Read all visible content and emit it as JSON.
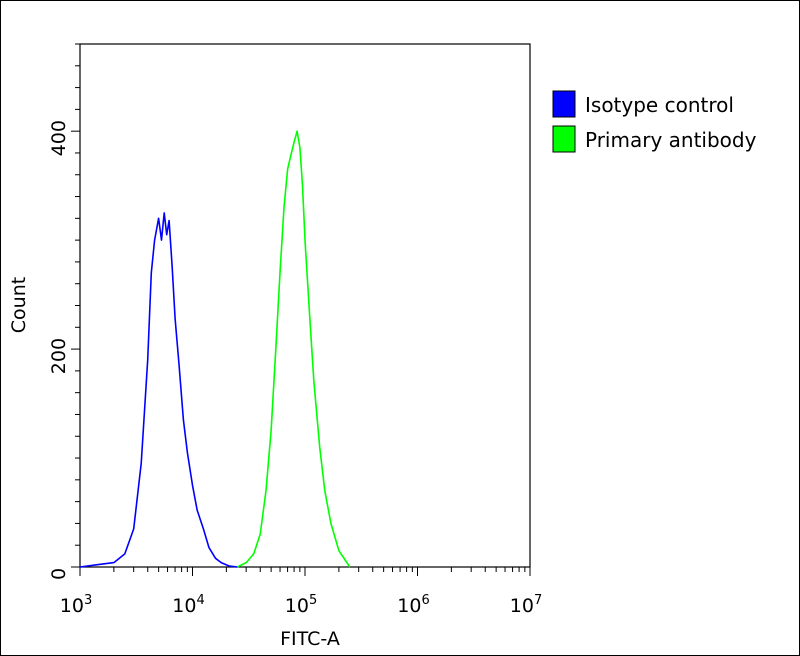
{
  "chart_data": {
    "type": "line",
    "title": "",
    "xlabel": "FITC-A",
    "ylabel": "Count",
    "x_scale": "log",
    "xlim": [
      1000,
      10000000
    ],
    "ylim": [
      0,
      480
    ],
    "x_ticks": [
      {
        "value": 1000,
        "base": "10",
        "exp": "3"
      },
      {
        "value": 10000,
        "base": "10",
        "exp": "4"
      },
      {
        "value": 100000,
        "base": "10",
        "exp": "5"
      },
      {
        "value": 1000000,
        "base": "10",
        "exp": "6"
      },
      {
        "value": 10000000,
        "base": "10",
        "exp": "7"
      }
    ],
    "y_ticks": [
      {
        "value": 0,
        "label": "0"
      },
      {
        "value": 200,
        "label": "200"
      },
      {
        "value": 400,
        "label": "400"
      }
    ],
    "grid": false,
    "legend_position": "right",
    "series": [
      {
        "name": "Isotype control",
        "color": "#0000ff",
        "x": [
          1000,
          1400,
          2000,
          2500,
          3000,
          3500,
          4000,
          4300,
          4600,
          5000,
          5300,
          5600,
          5900,
          6200,
          6600,
          7000,
          7600,
          8300,
          9000,
          10000,
          11000,
          12500,
          14000,
          16000,
          18000,
          21000,
          25000
        ],
        "y": [
          0,
          2,
          4,
          12,
          35,
          95,
          190,
          270,
          300,
          320,
          300,
          325,
          305,
          318,
          275,
          228,
          185,
          135,
          105,
          75,
          52,
          35,
          18,
          8,
          4,
          1,
          0
        ]
      },
      {
        "name": "Primary antibody",
        "color": "#00ff00",
        "x": [
          25000,
          30000,
          35000,
          40000,
          45000,
          50000,
          55000,
          60000,
          65000,
          70000,
          75000,
          80000,
          85000,
          90000,
          95000,
          100000,
          110000,
          120000,
          135000,
          150000,
          170000,
          200000,
          250000
        ],
        "y": [
          0,
          4,
          12,
          30,
          70,
          125,
          200,
          270,
          330,
          365,
          378,
          390,
          400,
          385,
          350,
          300,
          230,
          170,
          110,
          70,
          40,
          15,
          0
        ]
      }
    ]
  }
}
